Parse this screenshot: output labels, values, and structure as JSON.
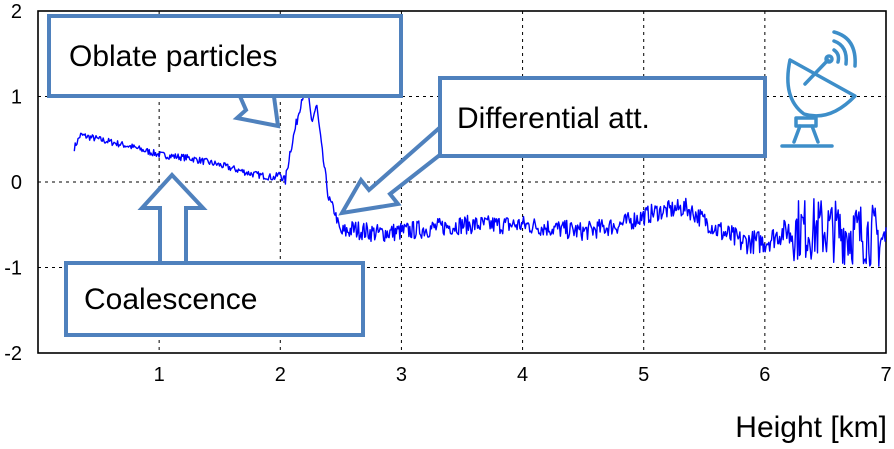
{
  "chart_data": {
    "type": "line",
    "title": "",
    "xlabel": "Height [km]",
    "ylabel": "",
    "xlim": [
      0,
      7
    ],
    "ylim": [
      -2,
      2
    ],
    "grid": true,
    "x_ticks": [
      "1",
      "2",
      "3",
      "4",
      "5",
      "6",
      "7"
    ],
    "y_ticks": [
      "2",
      "1",
      "0",
      "-1",
      "-2"
    ],
    "line_color": "#0000ff",
    "series": [
      {
        "trend": [
          [
            0.3,
            0.4
          ],
          [
            0.35,
            0.55
          ],
          [
            0.5,
            0.5
          ],
          [
            0.75,
            0.42
          ],
          [
            1.0,
            0.32
          ],
          [
            1.25,
            0.28
          ],
          [
            1.5,
            0.2
          ],
          [
            1.75,
            0.1
          ],
          [
            1.95,
            0.05
          ],
          [
            2.0,
            0.1
          ],
          [
            2.04,
            0.0
          ],
          [
            2.08,
            0.35
          ],
          [
            2.12,
            0.6
          ],
          [
            2.18,
            1.0
          ],
          [
            2.22,
            1.1
          ],
          [
            2.26,
            0.7
          ],
          [
            2.3,
            0.9
          ],
          [
            2.35,
            0.3
          ],
          [
            2.4,
            -0.2
          ],
          [
            2.45,
            -0.35
          ],
          [
            2.5,
            -0.6
          ],
          [
            2.6,
            -0.55
          ],
          [
            2.8,
            -0.6
          ],
          [
            3.0,
            -0.58
          ],
          [
            3.5,
            -0.5
          ],
          [
            4.0,
            -0.5
          ],
          [
            4.5,
            -0.58
          ],
          [
            4.8,
            -0.5
          ],
          [
            5.1,
            -0.35
          ],
          [
            5.35,
            -0.3
          ],
          [
            5.6,
            -0.55
          ],
          [
            5.8,
            -0.7
          ],
          [
            6.0,
            -0.7
          ],
          [
            6.2,
            -0.55
          ],
          [
            6.5,
            -0.55
          ],
          [
            6.7,
            -0.6
          ],
          [
            6.85,
            -0.6
          ],
          [
            7.0,
            -0.7
          ]
        ]
      }
    ],
    "annotations": [
      {
        "text": "Oblate particles",
        "x": 2.25,
        "y": 0.8
      },
      {
        "text": "Differential att.",
        "x": 2.5,
        "y": -0.35
      },
      {
        "text": "Coalescence",
        "x": 1.05,
        "y": 0.05
      }
    ]
  },
  "icons": {
    "radar": "satellite-dish-icon"
  },
  "colors": {
    "annotation_border": "#4f81bd",
    "line": "#0000ff",
    "icon": "#3d8ec9"
  }
}
